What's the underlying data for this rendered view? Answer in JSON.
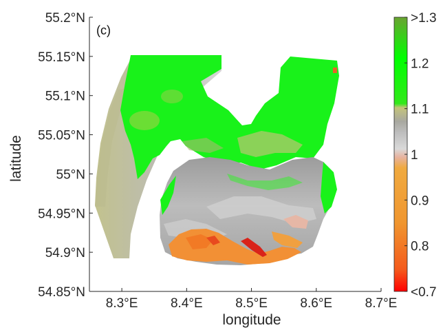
{
  "panel_label": "(c)",
  "colors": {
    "axes": "#262626",
    "colorbar_stops": [
      "#ff0000",
      "#f47a2a",
      "#f2a23a",
      "#e9b9a7",
      "#cfcfcf",
      "#b5b5b5",
      "#a8a88a",
      "#c8c870",
      "#22e61a",
      "#00ff00",
      "#6aa832"
    ]
  },
  "chart_data": {
    "type": "heatmap",
    "title": "",
    "xlabel": "longitude",
    "ylabel": "latitude",
    "xlim": [
      8.25,
      8.7
    ],
    "ylim": [
      54.85,
      55.2
    ],
    "x_ticks": [
      8.3,
      8.4,
      8.5,
      8.6,
      8.7
    ],
    "x_tick_labels": [
      "8.3°E",
      "8.4°E",
      "8.5°E",
      "8.6°E",
      "8.7°E"
    ],
    "y_ticks": [
      54.85,
      54.9,
      54.95,
      55.0,
      55.05,
      55.1,
      55.15,
      55.2
    ],
    "y_tick_labels": [
      "54.85°N",
      "54.9°N",
      "54.95°N",
      "55°N",
      "55.05°N",
      "55.1°N",
      "55.15°N",
      "55.2°N"
    ],
    "colorbar": {
      "range": [
        0.7,
        1.3
      ],
      "ticks": [
        0.7,
        0.8,
        0.9,
        1.0,
        1.1,
        1.2,
        1.3
      ],
      "tick_labels": [
        "<0.7",
        "0.8",
        "0.9",
        "1",
        "1.1",
        "1.2",
        ">1.3"
      ]
    },
    "grid": false
  }
}
